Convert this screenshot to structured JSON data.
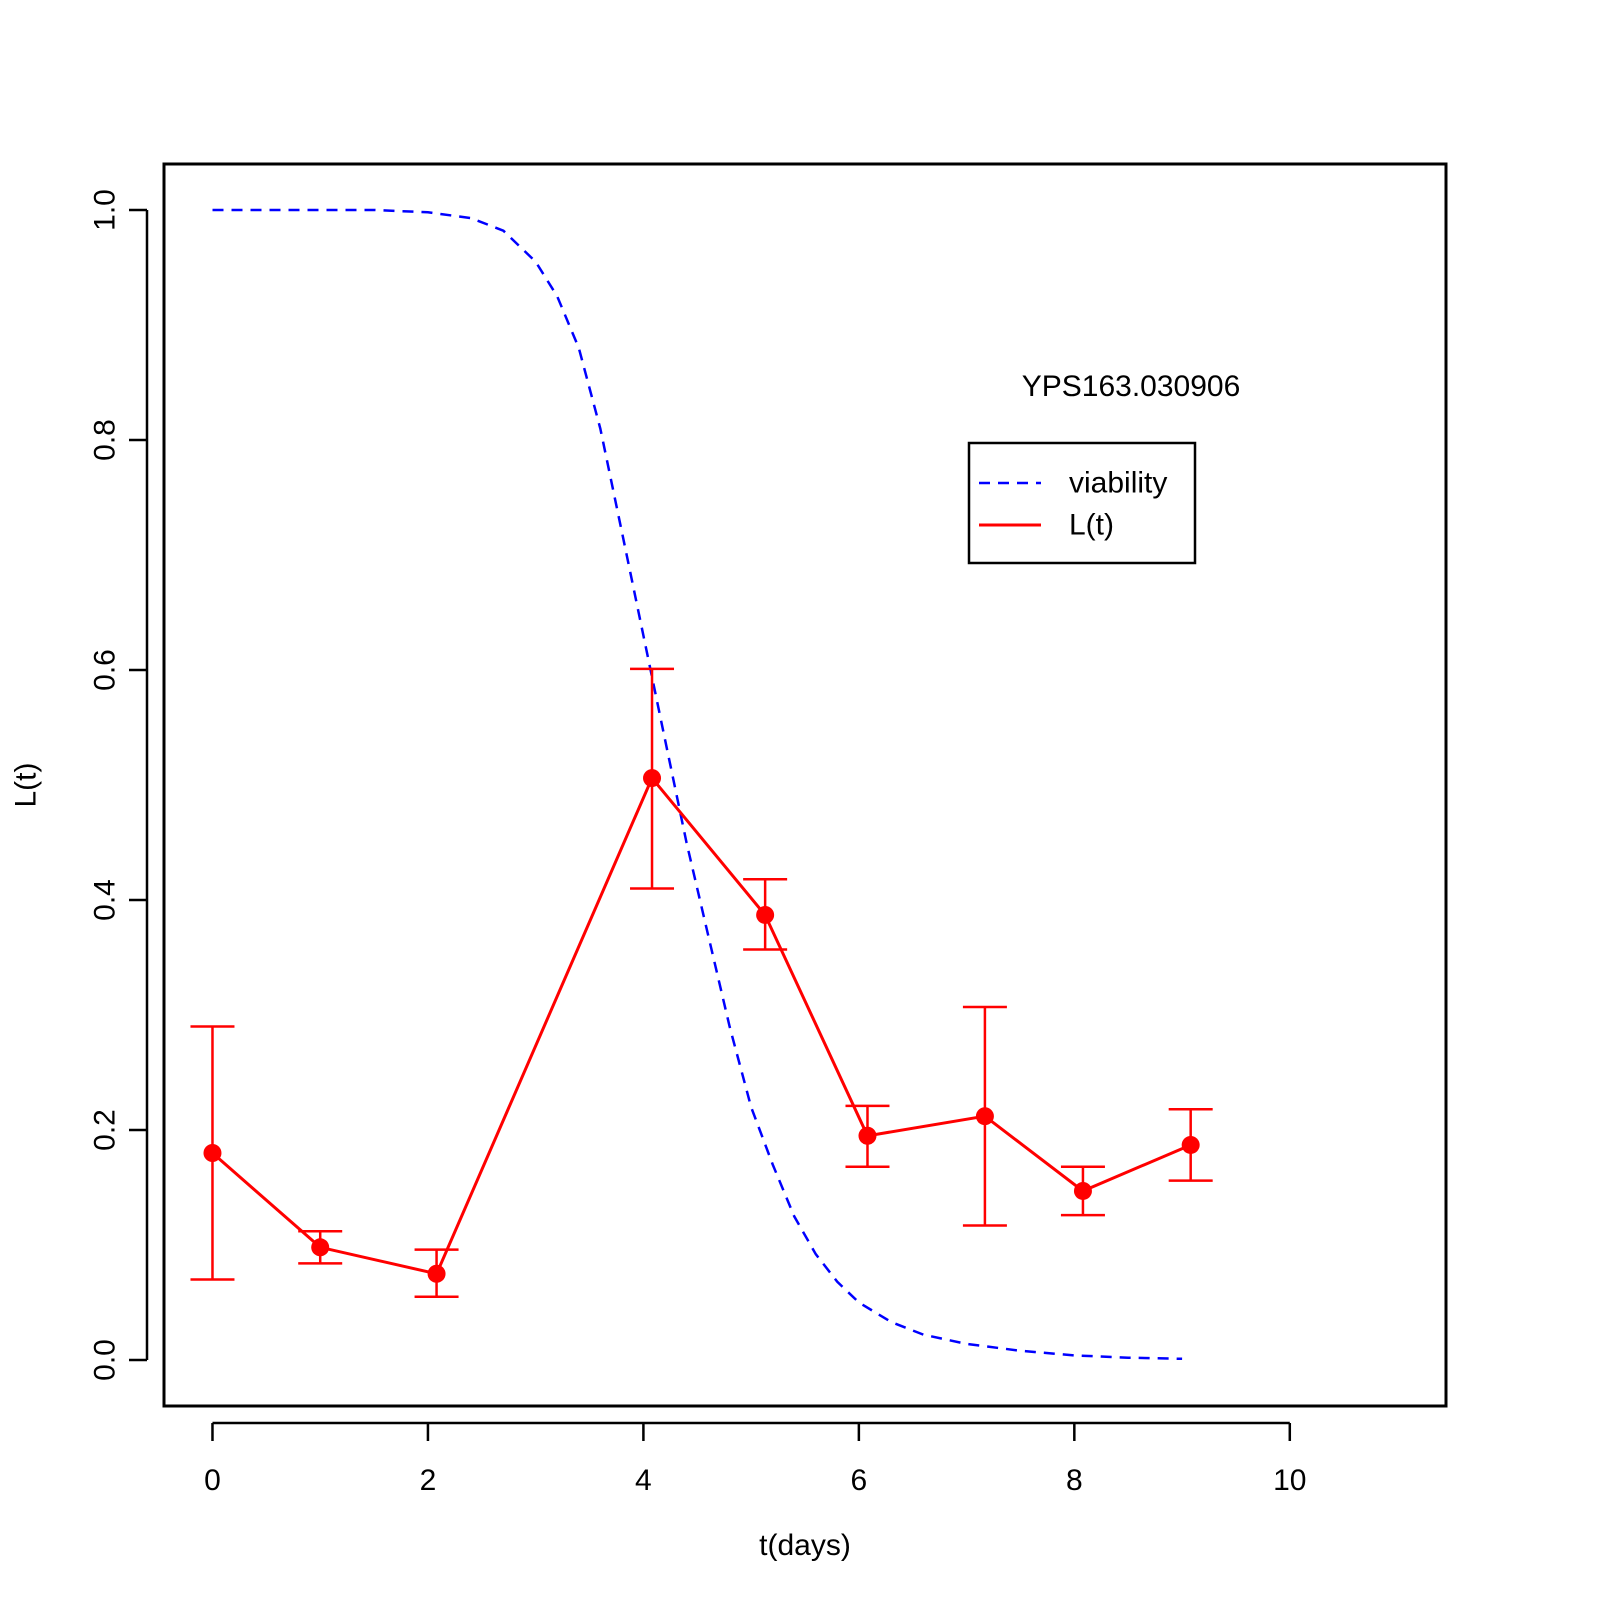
{
  "chart_data": {
    "type": "line",
    "title": "",
    "annotation": "YPS163.030906",
    "xlabel": "t(days)",
    "ylabel": "L(t)",
    "xlim": [
      -0.45,
      11.45
    ],
    "ylim": [
      -0.04,
      1.04
    ],
    "x_ticks": [
      0,
      2,
      4,
      6,
      8,
      10
    ],
    "x_tick_labels": [
      "0",
      "2",
      "4",
      "6",
      "8",
      "10"
    ],
    "y_ticks": [
      0.0,
      0.2,
      0.4,
      0.6,
      0.8,
      1.0
    ],
    "y_tick_labels": [
      "0.0",
      "0.2",
      "0.4",
      "0.6",
      "0.8",
      "1.0"
    ],
    "grid": false,
    "legend": {
      "position": "upper-right",
      "entries": [
        {
          "label": "viability",
          "style": "dashed",
          "color": "#0000ff"
        },
        {
          "label": "L(t)",
          "style": "solid",
          "color": "#ff0000"
        }
      ]
    },
    "series": [
      {
        "name": "viability",
        "kind": "line",
        "style": "dashed",
        "color": "#0000ff",
        "points": [
          [
            0,
            1.0
          ],
          [
            1,
            1.0
          ],
          [
            1.5,
            1.0
          ],
          [
            2,
            0.998
          ],
          [
            2.4,
            0.993
          ],
          [
            2.7,
            0.982
          ],
          [
            3.0,
            0.955
          ],
          [
            3.2,
            0.925
          ],
          [
            3.4,
            0.88
          ],
          [
            3.6,
            0.81
          ],
          [
            3.8,
            0.72
          ],
          [
            4.0,
            0.63
          ],
          [
            4.2,
            0.54
          ],
          [
            4.4,
            0.45
          ],
          [
            4.6,
            0.37
          ],
          [
            4.8,
            0.29
          ],
          [
            5.0,
            0.22
          ],
          [
            5.2,
            0.17
          ],
          [
            5.4,
            0.125
          ],
          [
            5.6,
            0.092
          ],
          [
            5.8,
            0.068
          ],
          [
            6.0,
            0.05
          ],
          [
            6.3,
            0.033
          ],
          [
            6.6,
            0.022
          ],
          [
            7.0,
            0.014
          ],
          [
            7.5,
            0.008
          ],
          [
            8.0,
            0.004
          ],
          [
            8.5,
            0.002
          ],
          [
            9.0,
            0.001
          ]
        ]
      },
      {
        "name": "L(t)",
        "kind": "line-points-errorbars",
        "style": "solid",
        "color": "#ff0000",
        "x": [
          0,
          1,
          2.08,
          4.08,
          5.13,
          6.08,
          7.17,
          8.08,
          9.08
        ],
        "y": [
          0.18,
          0.098,
          0.075,
          0.506,
          0.387,
          0.195,
          0.212,
          0.147,
          0.187
        ],
        "lower": [
          0.07,
          0.084,
          0.055,
          0.41,
          0.357,
          0.168,
          0.117,
          0.126,
          0.156
        ],
        "upper": [
          0.29,
          0.112,
          0.096,
          0.601,
          0.418,
          0.221,
          0.307,
          0.168,
          0.218
        ]
      }
    ]
  }
}
